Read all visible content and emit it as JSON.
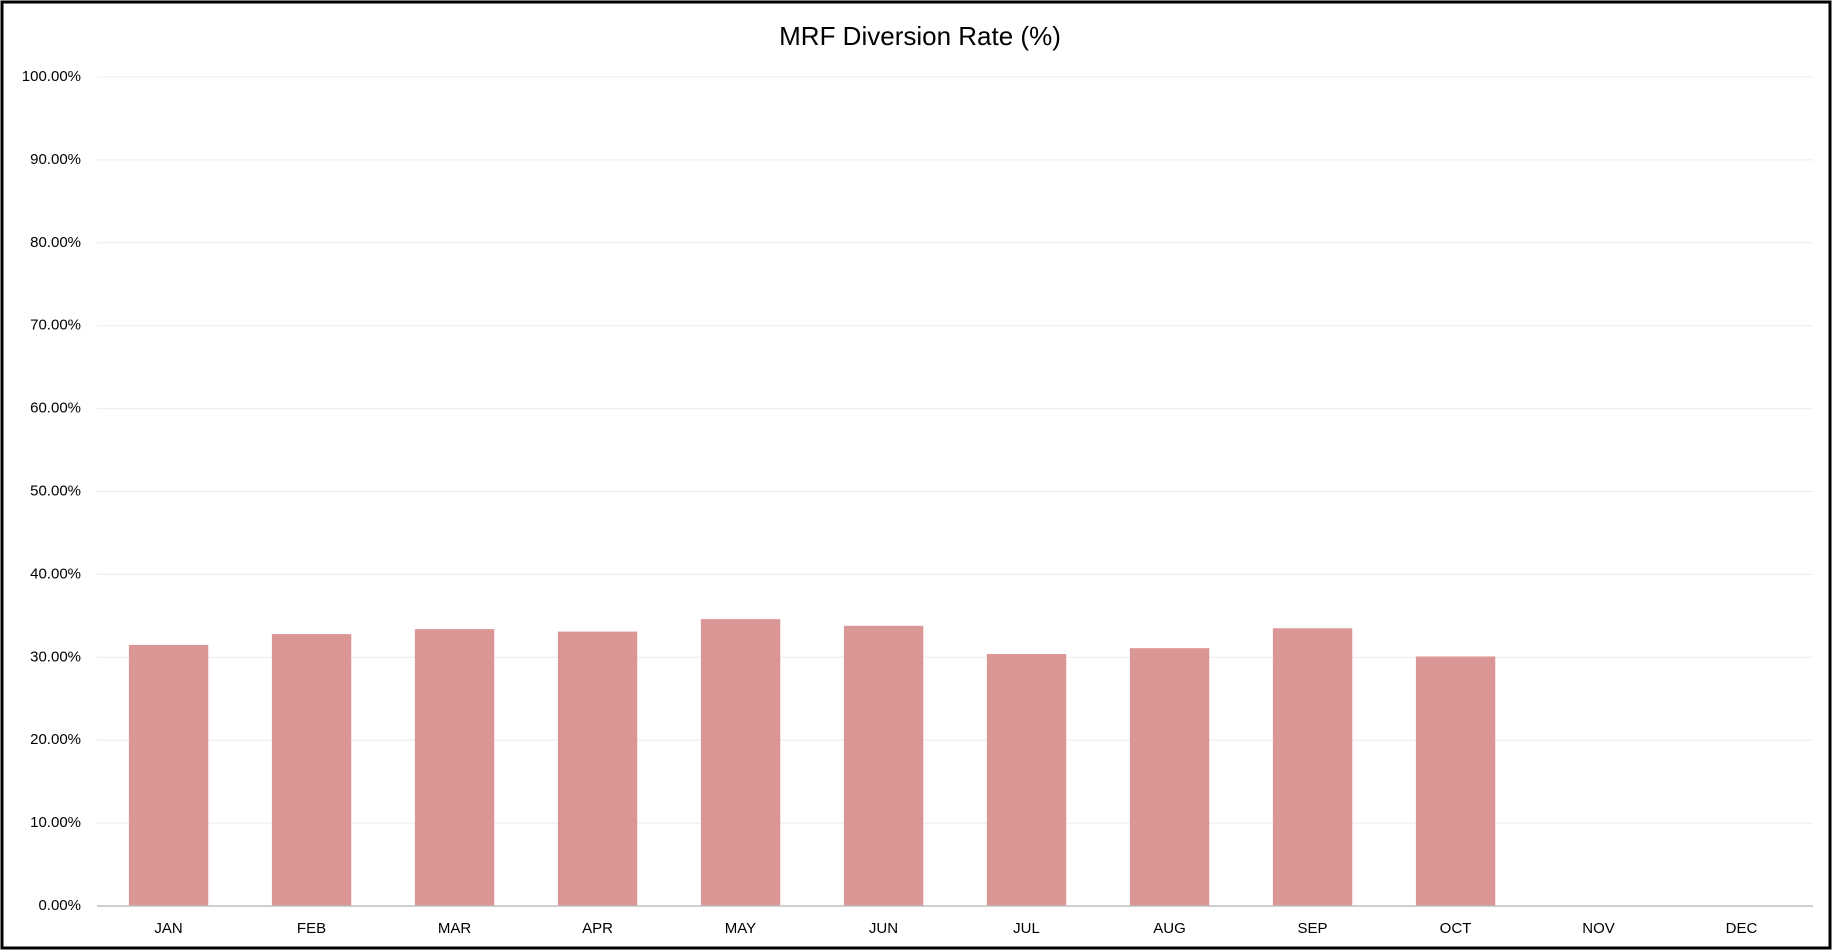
{
  "chart_data": {
    "type": "bar",
    "title": "MRF Diversion Rate (%)",
    "categories": [
      "JAN",
      "FEB",
      "MAR",
      "APR",
      "MAY",
      "JUN",
      "JUL",
      "AUG",
      "SEP",
      "OCT",
      "NOV",
      "DEC"
    ],
    "values": [
      31.5,
      32.8,
      33.4,
      33.1,
      34.6,
      33.8,
      30.4,
      31.1,
      33.5,
      30.1,
      null,
      null
    ],
    "color": "#d99694",
    "ylim": [
      0,
      100
    ],
    "yticks": [
      {
        "value": 0,
        "label": "0.00%"
      },
      {
        "value": 10,
        "label": "10.00%"
      },
      {
        "value": 20,
        "label": "20.00%"
      },
      {
        "value": 30,
        "label": "30.00%"
      },
      {
        "value": 40,
        "label": "40.00%"
      },
      {
        "value": 50,
        "label": "50.00%"
      },
      {
        "value": 60,
        "label": "60.00%"
      },
      {
        "value": 70,
        "label": "70.00%"
      },
      {
        "value": 80,
        "label": "80.00%"
      },
      {
        "value": 90,
        "label": "90.00%"
      },
      {
        "value": 100,
        "label": "100.00%"
      }
    ],
    "grid": true
  }
}
